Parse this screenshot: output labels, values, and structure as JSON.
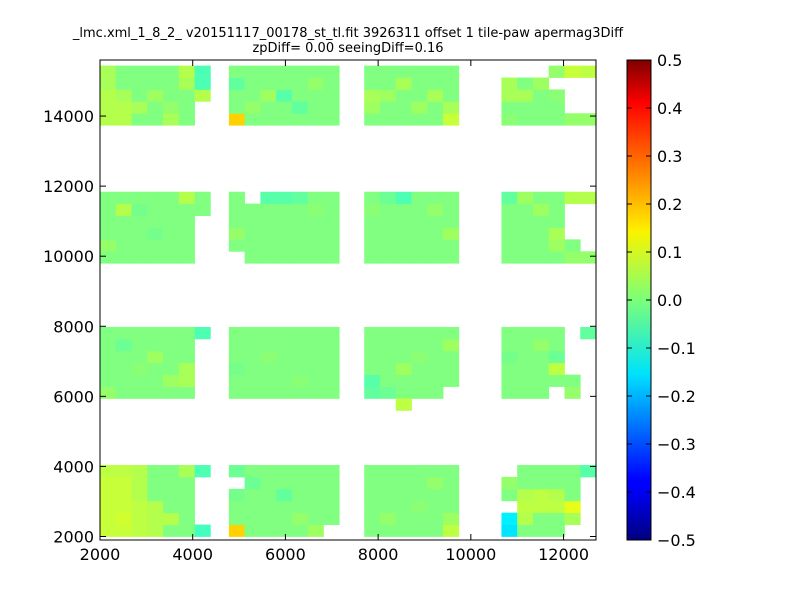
{
  "chart_data": {
    "type": "heatmap",
    "title_line1": "_lmc.xml_1_8_2_ v20151117_00178_st_tl.fit 3926311 offset 1 tile-paw apermag3Diff",
    "title_line2": "zpDiff= 0.00 seeingDiff=0.16",
    "xlabel": "",
    "ylabel": "",
    "xlim": [
      2000,
      12700
    ],
    "ylim": [
      1900,
      15600
    ],
    "xticks": [
      2000,
      4000,
      6000,
      8000,
      10000,
      12000
    ],
    "xtick_labels": [
      "2000",
      "4000",
      "6000",
      "8000",
      "10000",
      "12000"
    ],
    "yticks": [
      2000,
      4000,
      6000,
      8000,
      10000,
      12000,
      14000
    ],
    "ytick_labels": [
      "2000",
      "4000",
      "6000",
      "8000",
      "10000",
      "12000",
      "14000"
    ],
    "colorbar": {
      "colormap": "jet",
      "vmin": -0.5,
      "vmax": 0.5,
      "ticks": [
        0.5,
        0.4,
        0.3,
        0.2,
        0.1,
        0.0,
        -0.1,
        -0.2,
        -0.3,
        -0.4,
        -0.5
      ],
      "tick_labels": [
        "0.5",
        "0.4",
        "0.3",
        "0.2",
        "0.1",
        "0.0",
        "−0.1",
        "−0.2",
        "−0.3",
        "−0.4",
        "−0.5"
      ]
    },
    "cell_size": [
      340,
      340
    ],
    "columns_x": [
      2000,
      2340,
      2680,
      3020,
      3360,
      3700,
      4040,
      4780,
      5120,
      5460,
      5800,
      6140,
      6480,
      7700,
      8040,
      8380,
      8720,
      9060,
      9400,
      10660,
      11000,
      11340,
      11680,
      12020,
      12360
    ],
    "row_bands_y": [
      [
        2000,
        2340,
        2680,
        3020,
        3360,
        3700
      ],
      [
        5940,
        6280,
        6620,
        6960,
        7300,
        7640
      ],
      [
        9800,
        10140,
        10480,
        10820,
        11160,
        11500
      ],
      [
        13740,
        14080,
        14420,
        14760,
        15100
      ]
    ],
    "default_value": 0.0,
    "cells": [
      {
        "x": 2000,
        "y": 2000,
        "v": 0.07
      },
      {
        "x": 2000,
        "y": 2340,
        "v": 0.07
      },
      {
        "x": 2000,
        "y": 2680,
        "v": 0.07
      },
      {
        "x": 2000,
        "y": 3020,
        "v": 0.07
      },
      {
        "x": 2000,
        "y": 3360,
        "v": 0.07
      },
      {
        "x": 2000,
        "y": 3700,
        "v": 0.06
      },
      {
        "x": 2340,
        "y": 2000,
        "v": 0.07
      },
      {
        "x": 2340,
        "y": 2340,
        "v": 0.08
      },
      {
        "x": 2340,
        "y": 2680,
        "v": 0.07
      },
      {
        "x": 2340,
        "y": 3020,
        "v": 0.07
      },
      {
        "x": 2340,
        "y": 3360,
        "v": 0.07
      },
      {
        "x": 2340,
        "y": 3700,
        "v": 0.06
      },
      {
        "x": 2680,
        "y": 2000,
        "v": 0.06
      },
      {
        "x": 2680,
        "y": 2340,
        "v": 0.06
      },
      {
        "x": 2680,
        "y": 2680,
        "v": 0.06
      },
      {
        "x": 2680,
        "y": 3020,
        "v": 0.05
      },
      {
        "x": 2680,
        "y": 3360,
        "v": 0.05
      },
      {
        "x": 2680,
        "y": 3700,
        "v": 0.05
      },
      {
        "x": 3020,
        "y": 2000,
        "v": 0.05
      },
      {
        "x": 3020,
        "y": 2340,
        "v": 0.05
      },
      {
        "x": 3020,
        "y": 2680,
        "v": 0.05
      },
      {
        "x": 3360,
        "y": 2340,
        "v": 0.05
      },
      {
        "x": 3700,
        "y": 3700,
        "v": 0.04
      },
      {
        "x": 4040,
        "y": 2000,
        "v": -0.06
      },
      {
        "x": 4040,
        "y": 3700,
        "v": -0.05
      },
      {
        "x": 4780,
        "y": 2000,
        "v": 0.17
      },
      {
        "x": 4780,
        "y": 2340,
        "v": 0.0
      },
      {
        "x": 4780,
        "y": 2680,
        "v": 0.0
      },
      {
        "x": 4780,
        "y": 3020,
        "v": -0.01
      },
      {
        "x": 4780,
        "y": 3700,
        "v": -0.02
      },
      {
        "x": 5120,
        "y": 3360,
        "v": -0.02
      },
      {
        "x": 5800,
        "y": 3020,
        "v": -0.03
      },
      {
        "x": 6480,
        "y": 2000,
        "v": 0.03
      },
      {
        "x": 6140,
        "y": 2340,
        "v": 0.02
      },
      {
        "x": 8040,
        "y": 2340,
        "v": 0.02
      },
      {
        "x": 8720,
        "y": 2680,
        "v": 0.01
      },
      {
        "x": 9060,
        "y": 3360,
        "v": 0.02
      },
      {
        "x": 9400,
        "y": 2000,
        "v": 0.06
      },
      {
        "x": 9400,
        "y": 2340,
        "v": 0.03
      },
      {
        "x": 10660,
        "y": 2000,
        "v": -0.15
      },
      {
        "x": 10660,
        "y": 2340,
        "v": -0.14
      },
      {
        "x": 10660,
        "y": 3360,
        "v": 0.02
      },
      {
        "x": 11000,
        "y": 2340,
        "v": 0.05
      },
      {
        "x": 11000,
        "y": 2680,
        "v": 0.06
      },
      {
        "x": 11000,
        "y": 3020,
        "v": 0.05
      },
      {
        "x": 11340,
        "y": 2680,
        "v": 0.06
      },
      {
        "x": 11340,
        "y": 3020,
        "v": 0.06
      },
      {
        "x": 11680,
        "y": 2680,
        "v": 0.06
      },
      {
        "x": 11680,
        "y": 3020,
        "v": 0.05
      },
      {
        "x": 12020,
        "y": 2680,
        "v": 0.1
      },
      {
        "x": 12020,
        "y": 2340,
        "v": 0.04
      },
      {
        "x": 12360,
        "y": 3700,
        "v": -0.04
      },
      {
        "x": 2000,
        "y": 5940,
        "v": 0.02
      },
      {
        "x": 2340,
        "y": 7300,
        "v": -0.02
      },
      {
        "x": 2680,
        "y": 6620,
        "v": 0.01
      },
      {
        "x": 3020,
        "y": 6960,
        "v": 0.03
      },
      {
        "x": 3360,
        "y": 6280,
        "v": 0.03
      },
      {
        "x": 3700,
        "y": 6620,
        "v": 0.04
      },
      {
        "x": 3700,
        "y": 6280,
        "v": 0.04
      },
      {
        "x": 4040,
        "y": 7640,
        "v": -0.05
      },
      {
        "x": 4780,
        "y": 6620,
        "v": -0.01
      },
      {
        "x": 5460,
        "y": 6960,
        "v": 0.01
      },
      {
        "x": 6140,
        "y": 6280,
        "v": 0.01
      },
      {
        "x": 7700,
        "y": 5940,
        "v": -0.03
      },
      {
        "x": 7700,
        "y": 6280,
        "v": -0.04
      },
      {
        "x": 8040,
        "y": 5940,
        "v": -0.02
      },
      {
        "x": 8380,
        "y": 6620,
        "v": 0.03
      },
      {
        "x": 8720,
        "y": 6960,
        "v": 0.01
      },
      {
        "x": 9400,
        "y": 7300,
        "v": 0.03
      },
      {
        "x": 10660,
        "y": 6960,
        "v": -0.01
      },
      {
        "x": 11340,
        "y": 7300,
        "v": 0.02
      },
      {
        "x": 11680,
        "y": 6620,
        "v": 0.06
      },
      {
        "x": 11680,
        "y": 6960,
        "v": -0.02
      },
      {
        "x": 12020,
        "y": 5940,
        "v": 0.02
      },
      {
        "x": 12360,
        "y": 7640,
        "v": -0.03
      },
      {
        "x": 2000,
        "y": 10140,
        "v": 0.02
      },
      {
        "x": 2340,
        "y": 11160,
        "v": 0.05
      },
      {
        "x": 2680,
        "y": 11160,
        "v": -0.01
      },
      {
        "x": 3020,
        "y": 10480,
        "v": -0.01
      },
      {
        "x": 3700,
        "y": 11500,
        "v": 0.05
      },
      {
        "x": 4780,
        "y": 10480,
        "v": 0.02
      },
      {
        "x": 5460,
        "y": 11500,
        "v": -0.04
      },
      {
        "x": 5800,
        "y": 11500,
        "v": -0.04
      },
      {
        "x": 6140,
        "y": 11500,
        "v": -0.03
      },
      {
        "x": 6480,
        "y": 11160,
        "v": 0.01
      },
      {
        "x": 7700,
        "y": 11160,
        "v": 0.01
      },
      {
        "x": 8040,
        "y": 11500,
        "v": -0.02
      },
      {
        "x": 8380,
        "y": 11500,
        "v": -0.05
      },
      {
        "x": 9060,
        "y": 11160,
        "v": 0.02
      },
      {
        "x": 9400,
        "y": 10480,
        "v": 0.03
      },
      {
        "x": 10660,
        "y": 11500,
        "v": -0.03
      },
      {
        "x": 11000,
        "y": 11500,
        "v": 0.03
      },
      {
        "x": 11340,
        "y": 11160,
        "v": 0.03
      },
      {
        "x": 11680,
        "y": 10480,
        "v": 0.04
      },
      {
        "x": 11680,
        "y": 10140,
        "v": 0.03
      },
      {
        "x": 12020,
        "y": 11500,
        "v": 0.05
      },
      {
        "x": 12360,
        "y": 11500,
        "v": 0.05
      },
      {
        "x": 12020,
        "y": 9800,
        "v": 0.02
      },
      {
        "x": 12360,
        "y": 9800,
        "v": 0.02
      },
      {
        "x": 2000,
        "y": 13740,
        "v": 0.05
      },
      {
        "x": 2000,
        "y": 14080,
        "v": 0.05
      },
      {
        "x": 2000,
        "y": 14420,
        "v": 0.05
      },
      {
        "x": 2000,
        "y": 14760,
        "v": 0.04
      },
      {
        "x": 2000,
        "y": 15100,
        "v": 0.04
      },
      {
        "x": 2340,
        "y": 13740,
        "v": 0.05
      },
      {
        "x": 2340,
        "y": 14080,
        "v": 0.05
      },
      {
        "x": 2340,
        "y": 14420,
        "v": 0.04
      },
      {
        "x": 2680,
        "y": 14080,
        "v": 0.04
      },
      {
        "x": 3020,
        "y": 14420,
        "v": 0.03
      },
      {
        "x": 3360,
        "y": 14080,
        "v": 0.02
      },
      {
        "x": 3360,
        "y": 13740,
        "v": 0.04
      },
      {
        "x": 3700,
        "y": 14760,
        "v": 0.04
      },
      {
        "x": 3700,
        "y": 15100,
        "v": 0.05
      },
      {
        "x": 4040,
        "y": 14760,
        "v": -0.05
      },
      {
        "x": 4040,
        "y": 15100,
        "v": -0.05
      },
      {
        "x": 4040,
        "y": 14420,
        "v": 0.05
      },
      {
        "x": 4780,
        "y": 13740,
        "v": 0.17
      },
      {
        "x": 4780,
        "y": 14760,
        "v": -0.03
      },
      {
        "x": 5120,
        "y": 14080,
        "v": 0.02
      },
      {
        "x": 5460,
        "y": 14420,
        "v": 0.03
      },
      {
        "x": 5800,
        "y": 14420,
        "v": -0.04
      },
      {
        "x": 6140,
        "y": 14080,
        "v": -0.03
      },
      {
        "x": 6480,
        "y": 14760,
        "v": 0.02
      },
      {
        "x": 7700,
        "y": 14080,
        "v": 0.03
      },
      {
        "x": 7700,
        "y": 14420,
        "v": 0.04
      },
      {
        "x": 8040,
        "y": 14420,
        "v": 0.03
      },
      {
        "x": 8380,
        "y": 14760,
        "v": 0.04
      },
      {
        "x": 8720,
        "y": 14080,
        "v": 0.03
      },
      {
        "x": 9060,
        "y": 14420,
        "v": 0.04
      },
      {
        "x": 9400,
        "y": 13740,
        "v": 0.07
      },
      {
        "x": 9400,
        "y": 14080,
        "v": 0.04
      },
      {
        "x": 10660,
        "y": 14420,
        "v": 0.04
      },
      {
        "x": 10660,
        "y": 14760,
        "v": 0.04
      },
      {
        "x": 10660,
        "y": 13740,
        "v": 0.01
      },
      {
        "x": 11000,
        "y": 14420,
        "v": 0.04
      },
      {
        "x": 11340,
        "y": 14760,
        "v": 0.03
      },
      {
        "x": 11680,
        "y": 15100,
        "v": 0.02
      },
      {
        "x": 11680,
        "y": 14420,
        "v": 0.01
      },
      {
        "x": 12020,
        "y": 15100,
        "v": 0.07
      },
      {
        "x": 12360,
        "y": 15100,
        "v": 0.06
      },
      {
        "x": 12020,
        "y": 13740,
        "v": 0.02
      },
      {
        "x": 12360,
        "y": 13740,
        "v": 0.02
      },
      {
        "x": 8380,
        "y": 5600,
        "v": 0.06
      }
    ],
    "missing": [
      {
        "x": 4040,
        "y": 2340
      },
      {
        "x": 4040,
        "y": 2680
      },
      {
        "x": 4040,
        "y": 3020
      },
      {
        "x": 4040,
        "y": 3360
      },
      {
        "x": 4780,
        "y": 3360
      },
      {
        "x": 6820,
        "y": 2000
      },
      {
        "x": 10660,
        "y": 2680
      },
      {
        "x": 10660,
        "y": 3700
      },
      {
        "x": 12020,
        "y": 2000
      },
      {
        "x": 12360,
        "y": 2000
      },
      {
        "x": 12360,
        "y": 2340
      },
      {
        "x": 12360,
        "y": 2680
      },
      {
        "x": 12360,
        "y": 3020
      },
      {
        "x": 12360,
        "y": 3360
      },
      {
        "x": 4040,
        "y": 5940
      },
      {
        "x": 4040,
        "y": 6280
      },
      {
        "x": 4040,
        "y": 6620
      },
      {
        "x": 4040,
        "y": 6960
      },
      {
        "x": 4040,
        "y": 7300
      },
      {
        "x": 9400,
        "y": 5940
      },
      {
        "x": 11680,
        "y": 5940
      },
      {
        "x": 12020,
        "y": 6620
      },
      {
        "x": 12020,
        "y": 6960
      },
      {
        "x": 12020,
        "y": 7300
      },
      {
        "x": 12020,
        "y": 7640
      },
      {
        "x": 12360,
        "y": 5940
      },
      {
        "x": 12360,
        "y": 6280
      },
      {
        "x": 12360,
        "y": 6620
      },
      {
        "x": 12360,
        "y": 6960
      },
      {
        "x": 12360,
        "y": 7300
      },
      {
        "x": 4040,
        "y": 9800
      },
      {
        "x": 4040,
        "y": 10140
      },
      {
        "x": 4040,
        "y": 10480
      },
      {
        "x": 4040,
        "y": 10820
      },
      {
        "x": 4780,
        "y": 9800
      },
      {
        "x": 5120,
        "y": 11500
      },
      {
        "x": 12020,
        "y": 10480
      },
      {
        "x": 12020,
        "y": 10820
      },
      {
        "x": 12020,
        "y": 11160
      },
      {
        "x": 12360,
        "y": 10140
      },
      {
        "x": 12360,
        "y": 10480
      },
      {
        "x": 12360,
        "y": 10820
      },
      {
        "x": 12360,
        "y": 11160
      },
      {
        "x": 4040,
        "y": 13740
      },
      {
        "x": 4040,
        "y": 14080
      },
      {
        "x": 10660,
        "y": 15100
      },
      {
        "x": 11000,
        "y": 15100
      },
      {
        "x": 11340,
        "y": 15100
      },
      {
        "x": 11680,
        "y": 14760
      },
      {
        "x": 12020,
        "y": 14080
      },
      {
        "x": 12020,
        "y": 14420
      },
      {
        "x": 12020,
        "y": 14760
      },
      {
        "x": 12360,
        "y": 14080
      },
      {
        "x": 12360,
        "y": 14420
      },
      {
        "x": 12360,
        "y": 14760
      }
    ]
  }
}
